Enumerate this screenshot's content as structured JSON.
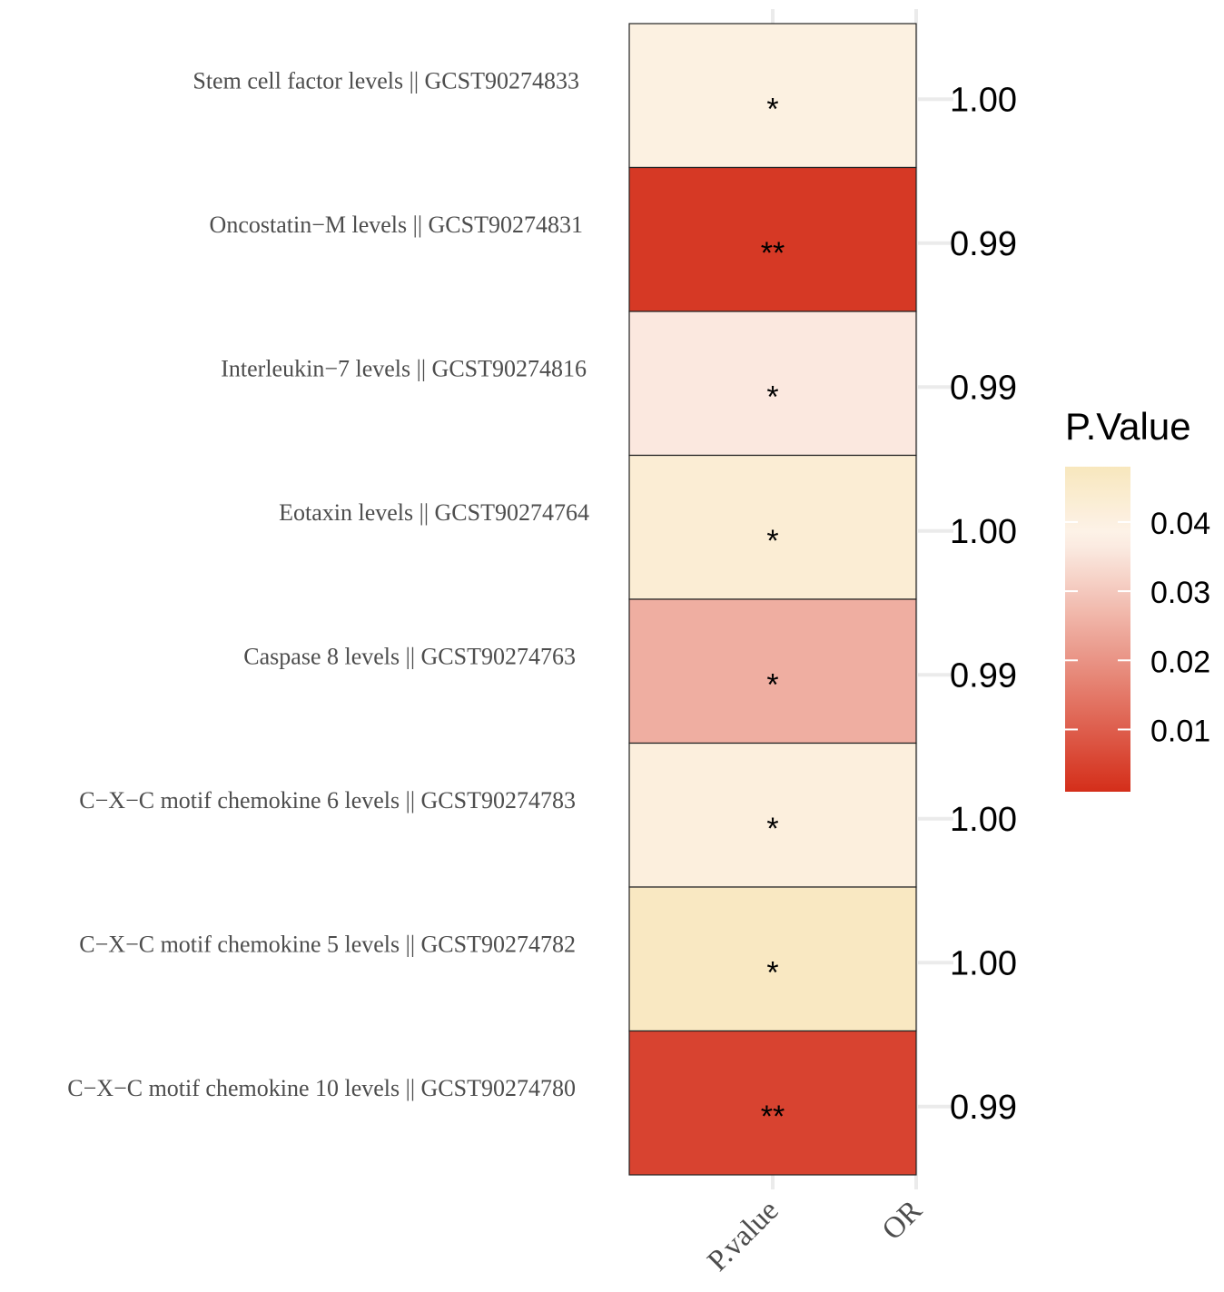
{
  "chart_data": {
    "type": "heatmap",
    "x_categories": [
      "P.value",
      "OR"
    ],
    "rows": [
      {
        "label": "Stem cell factor levels || GCST90274833",
        "p_value": 0.04,
        "significance": "*",
        "or": "1.00"
      },
      {
        "label": "Oncostatin−M levels || GCST90274831",
        "p_value": 0.003,
        "significance": "**",
        "or": "0.99"
      },
      {
        "label": "Interleukin−7 levels || GCST90274816",
        "p_value": 0.036,
        "significance": "*",
        "or": "0.99"
      },
      {
        "label": "Eotaxin levels || GCST90274764",
        "p_value": 0.043,
        "significance": "*",
        "or": "1.00"
      },
      {
        "label": "Caspase 8 levels || GCST90274763",
        "p_value": 0.025,
        "significance": "*",
        "or": "0.99"
      },
      {
        "label": "C−X−C motif chemokine 6 levels || GCST90274783",
        "p_value": 0.041,
        "significance": "*",
        "or": "1.00"
      },
      {
        "label": "C−X−C motif chemokine 5 levels || GCST90274782",
        "p_value": 0.047,
        "significance": "*",
        "or": "1.00"
      },
      {
        "label": "C−X−C motif chemokine 10 levels || GCST90274780",
        "p_value": 0.005,
        "significance": "**",
        "or": "0.99"
      }
    ],
    "legend": {
      "title": "P.Value",
      "range": [
        0.001,
        0.048
      ],
      "ticks": [
        0.04,
        0.03,
        0.02,
        0.01
      ],
      "tick_labels": [
        "0.04",
        "0.03",
        "0.02",
        "0.01"
      ],
      "colors": {
        "low": "#d42e1a",
        "mid": "#fdf3ea",
        "high": "#f8e7bd"
      },
      "position": "right"
    }
  }
}
